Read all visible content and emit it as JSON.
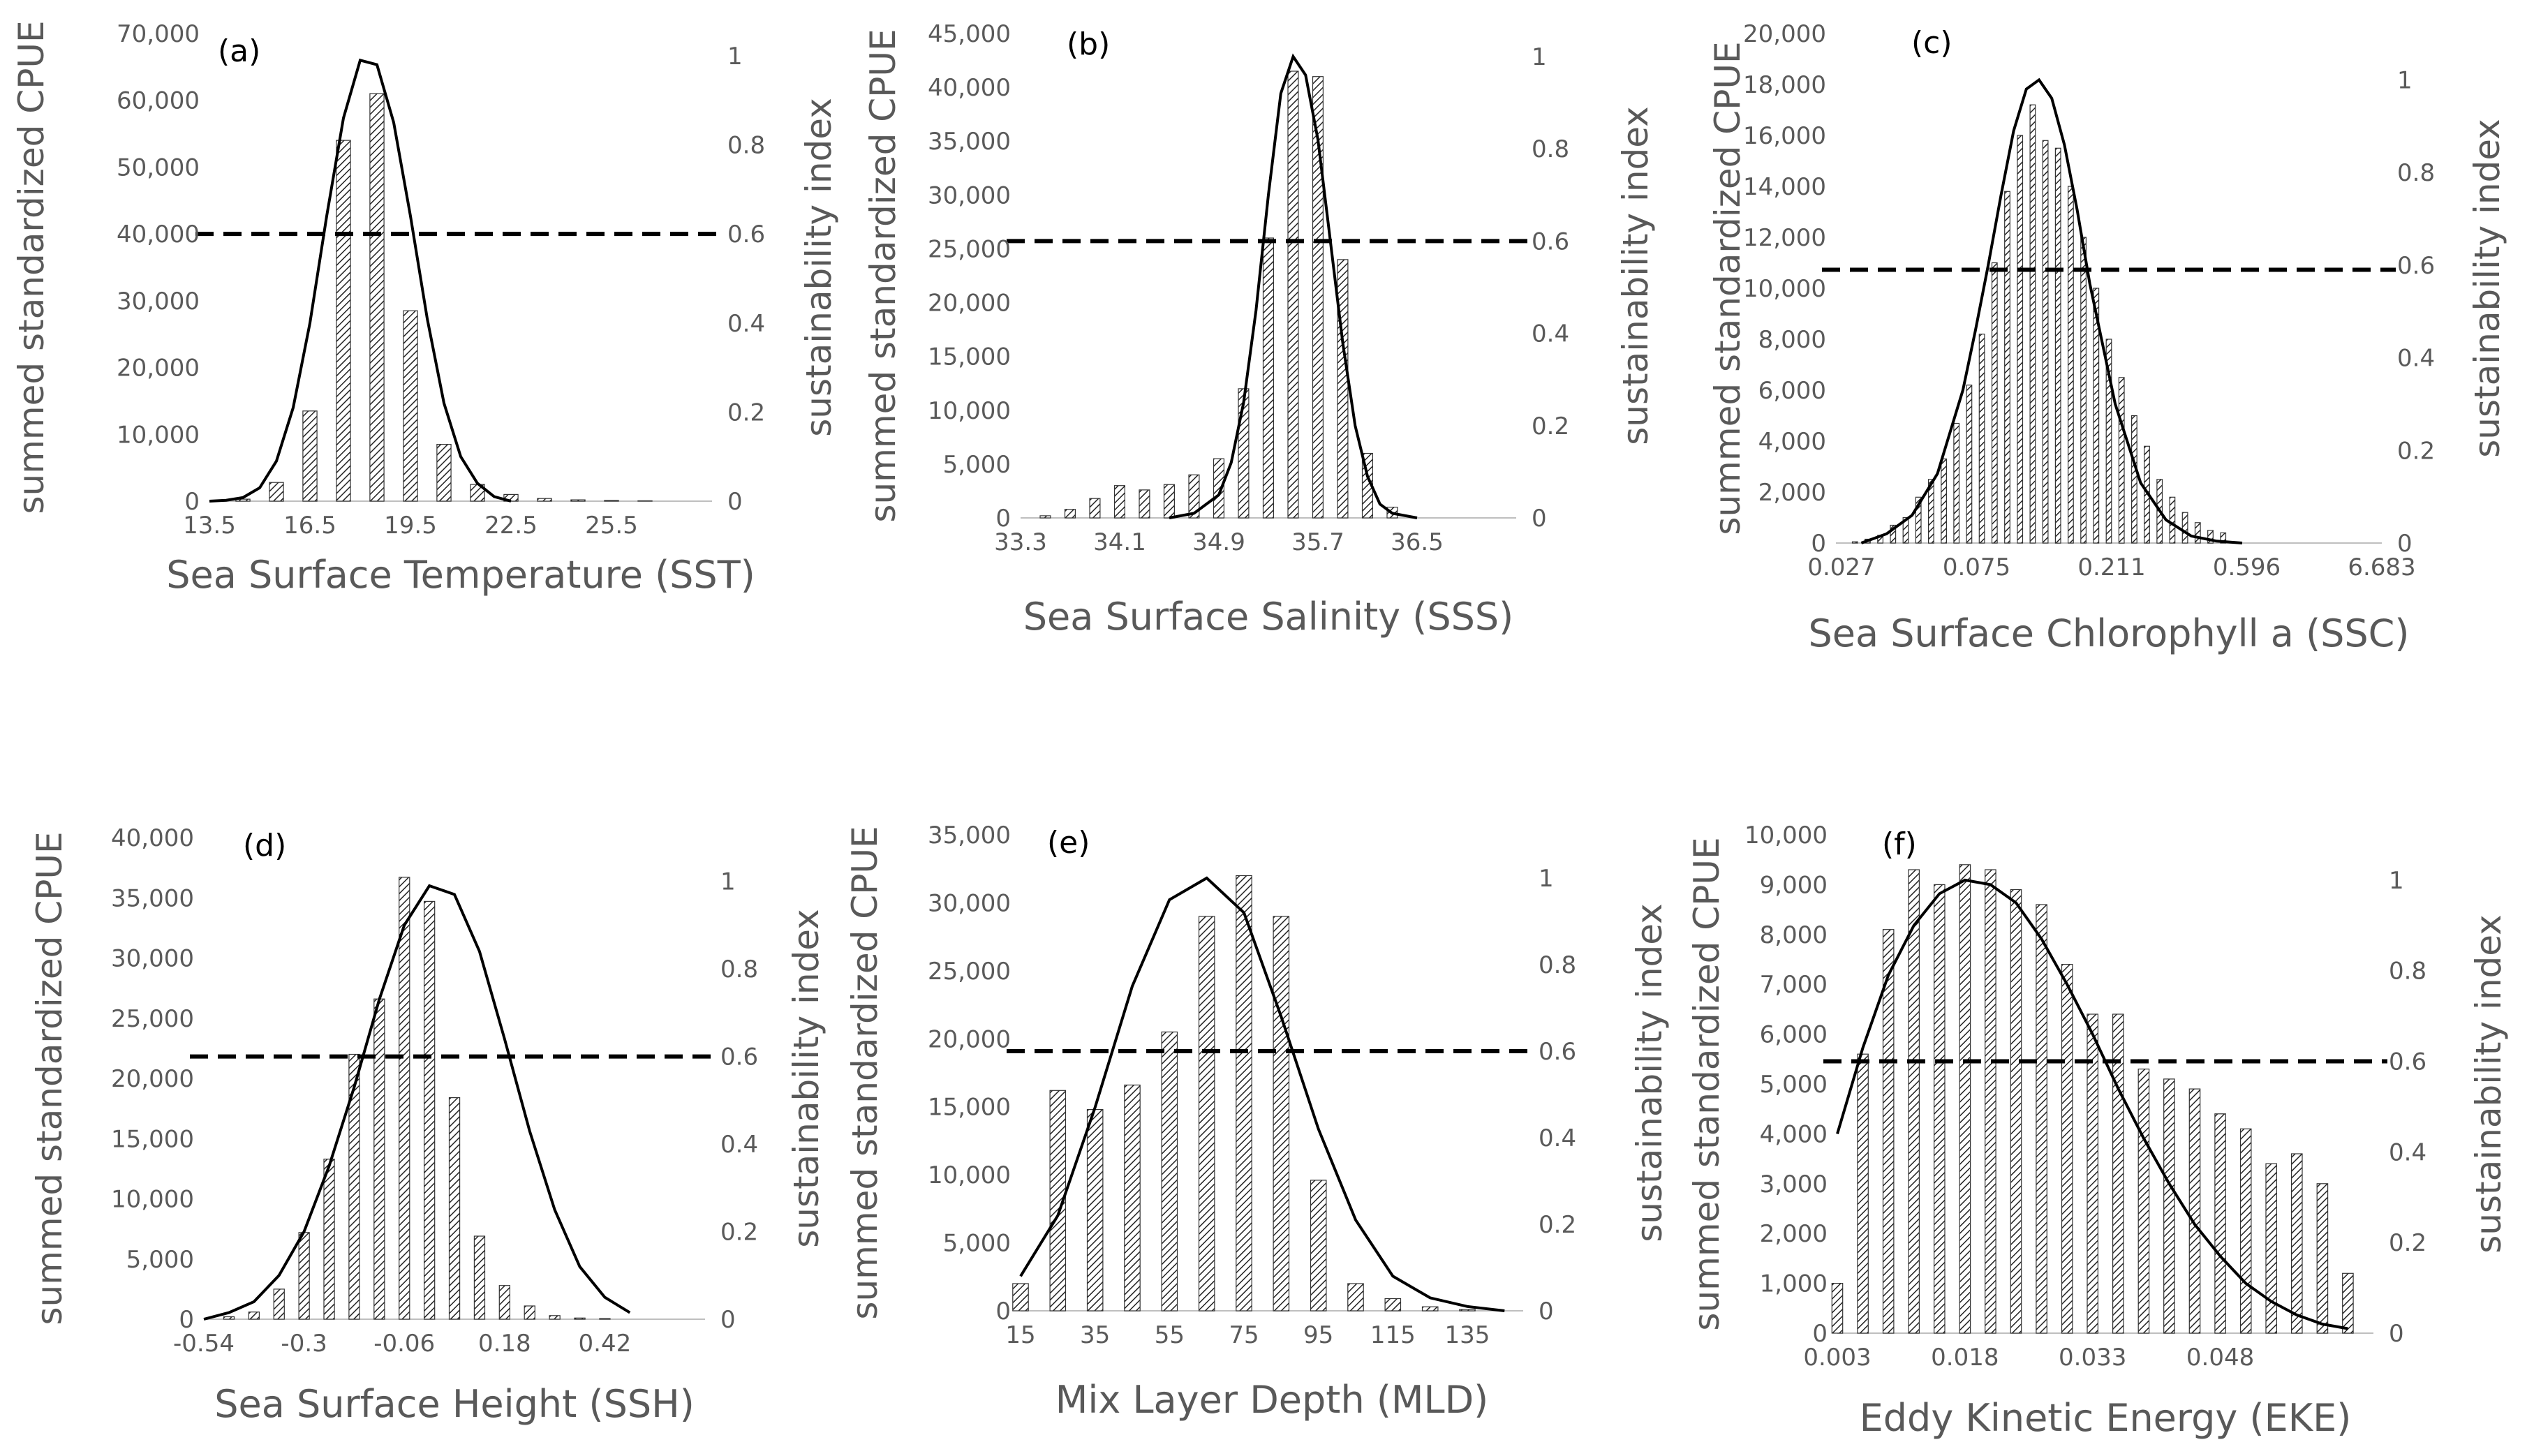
{
  "chart_data": [
    {
      "type": "bar",
      "panel": "(a)",
      "xlabel": "Sea Surface Temperature (SST)",
      "ylabel": "summed standardized CPUE",
      "y2label": "sustainability index",
      "x_tick_labels": [
        "13.5",
        "16.5",
        "19.5",
        "22.5",
        "25.5"
      ],
      "y_tick_labels": [
        "0",
        "10,000",
        "20,000",
        "30,000",
        "40,000",
        "50,000",
        "60,000",
        "70,000"
      ],
      "y2_tick_labels": [
        "0",
        "0.2",
        "0.4",
        "0.6",
        "0.8",
        "1"
      ],
      "ylim": [
        0,
        70000
      ],
      "y2lim": [
        0,
        1.05
      ],
      "xlim": [
        13.5,
        28.5
      ],
      "bars": {
        "x": [
          14.5,
          15.5,
          16.5,
          17.5,
          18.5,
          19.5,
          20.5,
          21.5,
          22.5,
          23.5,
          24.5,
          25.5,
          26.5
        ],
        "values": [
          300,
          2800,
          13500,
          54000,
          61000,
          28500,
          8500,
          2500,
          1000,
          400,
          200,
          100,
          50
        ]
      },
      "curve": {
        "x": [
          13.5,
          14.0,
          14.5,
          15.0,
          15.5,
          16.0,
          16.5,
          17.0,
          17.5,
          18.0,
          18.5,
          19.0,
          19.5,
          20.0,
          20.5,
          21.0,
          21.5,
          22.0,
          22.5
        ],
        "si": [
          0.0,
          0.002,
          0.008,
          0.03,
          0.09,
          0.21,
          0.4,
          0.64,
          0.86,
          0.99,
          0.98,
          0.85,
          0.64,
          0.41,
          0.22,
          0.1,
          0.04,
          0.01,
          0.0
        ]
      },
      "threshold": 0.6
    },
    {
      "type": "bar",
      "panel": "(b)",
      "xlabel": "Sea Surface Salinity (SSS)",
      "ylabel": "summed standardized CPUE",
      "y2label": "sustainability index",
      "x_tick_labels": [
        "33.3",
        "34.1",
        "34.9",
        "35.7",
        "36.5"
      ],
      "y_tick_labels": [
        "0",
        "5,000",
        "10,000",
        "15,000",
        "20,000",
        "25,000",
        "30,000",
        "35,000",
        "40,000",
        "45,000"
      ],
      "y2_tick_labels": [
        "0",
        "0.2",
        "0.4",
        "0.6",
        "0.8",
        "1"
      ],
      "ylim": [
        0,
        45000
      ],
      "y2lim": [
        0,
        1.05
      ],
      "xlim": [
        33.3,
        37.3
      ],
      "bars": {
        "x": [
          33.5,
          33.7,
          33.9,
          34.1,
          34.3,
          34.5,
          34.7,
          34.9,
          35.1,
          35.3,
          35.5,
          35.7,
          35.9,
          36.1,
          36.3
        ],
        "values": [
          200,
          800,
          1800,
          3000,
          2600,
          3100,
          4000,
          5500,
          12000,
          26000,
          41500,
          41000,
          24000,
          6000,
          1000
        ]
      },
      "curve": {
        "x": [
          34.5,
          34.7,
          34.9,
          35.0,
          35.1,
          35.2,
          35.3,
          35.4,
          35.5,
          35.6,
          35.7,
          35.8,
          35.9,
          36.0,
          36.1,
          36.2,
          36.3,
          36.5
        ],
        "si": [
          0.0,
          0.01,
          0.05,
          0.12,
          0.25,
          0.45,
          0.7,
          0.92,
          1.0,
          0.96,
          0.82,
          0.6,
          0.38,
          0.2,
          0.09,
          0.03,
          0.01,
          0.0
        ]
      },
      "threshold": 0.6
    },
    {
      "type": "bar",
      "panel": "(c)",
      "xlabel": "Sea Surface Chlorophyll a (SSC)",
      "ylabel": "summed standardized CPUE",
      "y2label": "sustainability index",
      "x_tick_labels": [
        "0.027",
        "0.075",
        "0.211",
        "0.596",
        "6.683"
      ],
      "y_tick_labels": [
        "0",
        "2,000",
        "4,000",
        "6,000",
        "8,000",
        "10,000",
        "12,000",
        "14,000",
        "16,000",
        "18,000",
        "20,000"
      ],
      "y2_tick_labels": [
        "0",
        "0.2",
        "0.4",
        "0.6",
        "0.8",
        "1"
      ],
      "ylim": [
        0,
        20000
      ],
      "y2lim": [
        0,
        1.1
      ],
      "xlim": [
        0,
        43
      ],
      "bars": {
        "x": [
          1.5,
          2.5,
          3.5,
          4.5,
          5.5,
          6.5,
          7.5,
          8.5,
          9.5,
          10.5,
          11.5,
          12.5,
          13.5,
          14.5,
          15.5,
          16.5,
          17.5,
          18.5,
          19.5,
          20.5,
          21.5,
          22.5,
          23.5,
          24.5,
          25.5,
          26.5,
          27.5,
          28.5,
          29.5,
          30.5
        ],
        "values": [
          50,
          150,
          300,
          700,
          1000,
          1800,
          2500,
          3300,
          4700,
          6200,
          8200,
          11000,
          13800,
          16000,
          17200,
          15800,
          15500,
          14000,
          12000,
          10000,
          8000,
          6500,
          5000,
          3800,
          2500,
          1800,
          1200,
          800,
          500,
          400
        ]
      },
      "curve": {
        "x": [
          2,
          4,
          6,
          8,
          10,
          11,
          12,
          13,
          14,
          15,
          16,
          17,
          18,
          19,
          20,
          22,
          24,
          26,
          28,
          30,
          32
        ],
        "si": [
          0.0,
          0.02,
          0.06,
          0.15,
          0.33,
          0.46,
          0.6,
          0.75,
          0.89,
          0.98,
          1.0,
          0.96,
          0.86,
          0.72,
          0.56,
          0.3,
          0.13,
          0.05,
          0.015,
          0.004,
          0.0
        ]
      },
      "threshold": 0.59
    },
    {
      "type": "bar",
      "panel": "(d)",
      "xlabel": "Sea Surface Height (SSH)",
      "ylabel": "summed standardized CPUE",
      "y2label": "sustainability index",
      "x_tick_labels": [
        "-0.54",
        "-0.3",
        "-0.06",
        "0.18",
        "0.42"
      ],
      "y_tick_labels": [
        "0",
        "5,000",
        "10,000",
        "15,000",
        "20,000",
        "25,000",
        "30,000",
        "35,000",
        "40,000"
      ],
      "y2_tick_labels": [
        "0",
        "0.2",
        "0.4",
        "0.6",
        "0.8",
        "1"
      ],
      "ylim": [
        0,
        40000
      ],
      "y2lim": [
        0,
        1.1
      ],
      "xlim": [
        -0.54,
        0.66
      ],
      "bars": {
        "x": [
          -0.48,
          -0.42,
          -0.36,
          -0.3,
          -0.24,
          -0.18,
          -0.12,
          -0.06,
          0.0,
          0.06,
          0.12,
          0.18,
          0.24,
          0.3,
          0.36,
          0.42
        ],
        "values": [
          200,
          600,
          2500,
          7200,
          13300,
          22000,
          26600,
          36700,
          34700,
          18400,
          6900,
          2800,
          1100,
          300,
          100,
          50
        ]
      },
      "curve": {
        "x": [
          -0.54,
          -0.48,
          -0.42,
          -0.36,
          -0.3,
          -0.24,
          -0.18,
          -0.12,
          -0.06,
          0.0,
          0.06,
          0.12,
          0.18,
          0.24,
          0.3,
          0.36,
          0.42,
          0.48
        ],
        "si": [
          0.0,
          0.015,
          0.04,
          0.1,
          0.2,
          0.35,
          0.53,
          0.73,
          0.9,
          0.99,
          0.97,
          0.84,
          0.64,
          0.43,
          0.25,
          0.12,
          0.05,
          0.015
        ]
      },
      "threshold": 0.6
    },
    {
      "type": "bar",
      "panel": "(e)",
      "xlabel": "Mix Layer Depth (MLD)",
      "ylabel": "summed standardized CPUE",
      "y2label": "sustainability index",
      "x_tick_labels": [
        "15",
        "35",
        "55",
        "75",
        "95",
        "115",
        "135"
      ],
      "y_tick_labels": [
        "0",
        "5,000",
        "10,000",
        "15,000",
        "20,000",
        "25,000",
        "30,000",
        "35,000"
      ],
      "y2_tick_labels": [
        "0",
        "0.2",
        "0.4",
        "0.6",
        "0.8",
        "1"
      ],
      "ylim": [
        0,
        35000
      ],
      "y2lim": [
        0,
        1.1
      ],
      "xlim": [
        15,
        150
      ],
      "bars": {
        "x": [
          15,
          25,
          35,
          45,
          55,
          65,
          75,
          85,
          95,
          105,
          115,
          125,
          135
        ],
        "values": [
          2000,
          16200,
          14800,
          16600,
          20500,
          29000,
          32000,
          29000,
          9600,
          2000,
          900,
          300,
          100
        ]
      },
      "curve": {
        "x": [
          15,
          25,
          35,
          45,
          55,
          65,
          75,
          85,
          95,
          105,
          115,
          125,
          135,
          145
        ],
        "si": [
          0.08,
          0.22,
          0.47,
          0.75,
          0.95,
          1.0,
          0.92,
          0.68,
          0.42,
          0.21,
          0.08,
          0.03,
          0.01,
          0.0
        ]
      },
      "threshold": 0.6
    },
    {
      "type": "bar",
      "panel": "(f)",
      "xlabel": "Eddy Kinetic Energy  (EKE)",
      "ylabel": "summed standardized CPUE",
      "y2label": "sustainability index",
      "x_tick_labels": [
        "0.003",
        "0.018",
        "0.033",
        "0.048"
      ],
      "y_tick_labels": [
        "0",
        "1,000",
        "2,000",
        "3,000",
        "4,000",
        "5,000",
        "6,000",
        "7,000",
        "8,000",
        "9,000",
        "10,000"
      ],
      "y2_tick_labels": [
        "0",
        "0.2",
        "0.4",
        "0.6",
        "0.8",
        "1"
      ],
      "ylim": [
        0,
        10000
      ],
      "y2lim": [
        0,
        1.1
      ],
      "xlim": [
        0.003,
        0.066
      ],
      "bars": {
        "x": [
          0.003,
          0.006,
          0.009,
          0.012,
          0.015,
          0.018,
          0.021,
          0.024,
          0.027,
          0.03,
          0.033,
          0.036,
          0.039,
          0.042,
          0.045,
          0.048,
          0.051,
          0.054,
          0.057,
          0.06,
          0.063
        ],
        "values": [
          1000,
          5600,
          8100,
          9300,
          9000,
          9400,
          9300,
          8900,
          8600,
          7400,
          6400,
          6400,
          5300,
          5100,
          4900,
          4400,
          4100,
          3400,
          3600,
          3000,
          1200
        ]
      },
      "curve": {
        "x": [
          0.003,
          0.006,
          0.009,
          0.012,
          0.015,
          0.018,
          0.021,
          0.024,
          0.027,
          0.03,
          0.033,
          0.036,
          0.039,
          0.042,
          0.045,
          0.048,
          0.051,
          0.054,
          0.057,
          0.06,
          0.063
        ],
        "si": [
          0.44,
          0.63,
          0.79,
          0.9,
          0.97,
          1.0,
          0.99,
          0.95,
          0.87,
          0.77,
          0.66,
          0.54,
          0.43,
          0.33,
          0.24,
          0.17,
          0.11,
          0.07,
          0.04,
          0.02,
          0.01
        ]
      },
      "threshold": 0.6
    }
  ]
}
